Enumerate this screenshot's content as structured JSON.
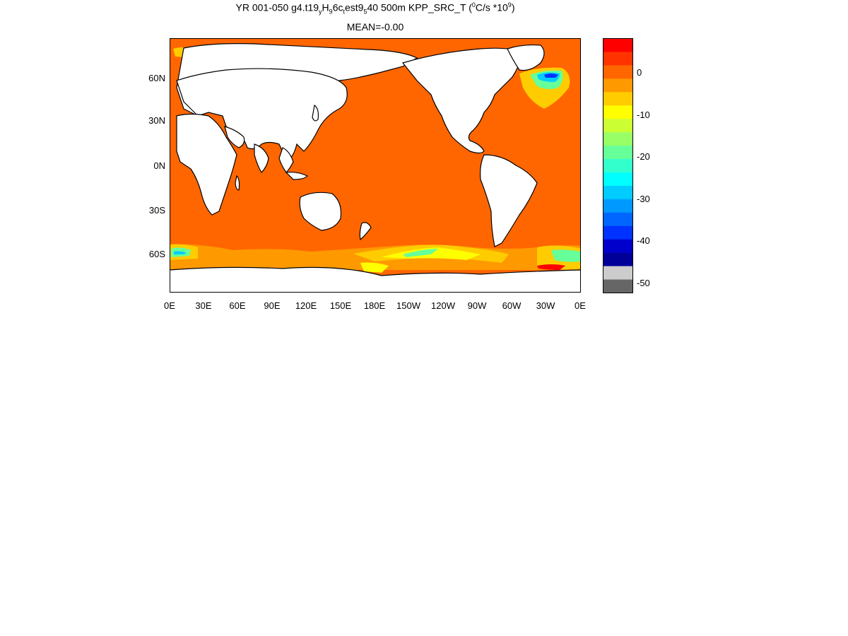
{
  "figure": {
    "title_main": "YR 001-050 g4.t19",
    "title_sub1": "y",
    "title_mid1": "H",
    "title_sub2": "9",
    "title_mid2": "6c",
    "title_sub3": "t",
    "title_mid3": "est9",
    "title_sub4": "5",
    "title_mid4": "40 500m KPP_SRC_T (",
    "title_sup1": "0",
    "title_mid5": "C/s *10",
    "title_sup2": "9",
    "title_end": ")",
    "mean_label": "MEAN=-0.00"
  },
  "axes": {
    "y_ticks": [
      "60N",
      "30N",
      "0N",
      "30S",
      "60S"
    ],
    "x_ticks": [
      "0E",
      "30E",
      "60E",
      "90E",
      "120E",
      "150E",
      "180E",
      "150W",
      "120W",
      "90W",
      "60W",
      "30W",
      "0E"
    ]
  },
  "colorbar": {
    "ticks": [
      "0",
      "-10",
      "-20",
      "-30",
      "-40",
      "-50"
    ],
    "colors": [
      "#ff0000",
      "#ff3300",
      "#ff6600",
      "#ff9900",
      "#ffcc00",
      "#ffff00",
      "#ccff33",
      "#99ff66",
      "#66ff99",
      "#33ffcc",
      "#00ffff",
      "#00ccff",
      "#0099ff",
      "#0066ff",
      "#0033ff",
      "#0000cc",
      "#000099",
      "#cccccc",
      "#666666"
    ]
  },
  "colors": {
    "ocean": "#ff6600",
    "land": "#ffffff",
    "coast": "#000000"
  }
}
